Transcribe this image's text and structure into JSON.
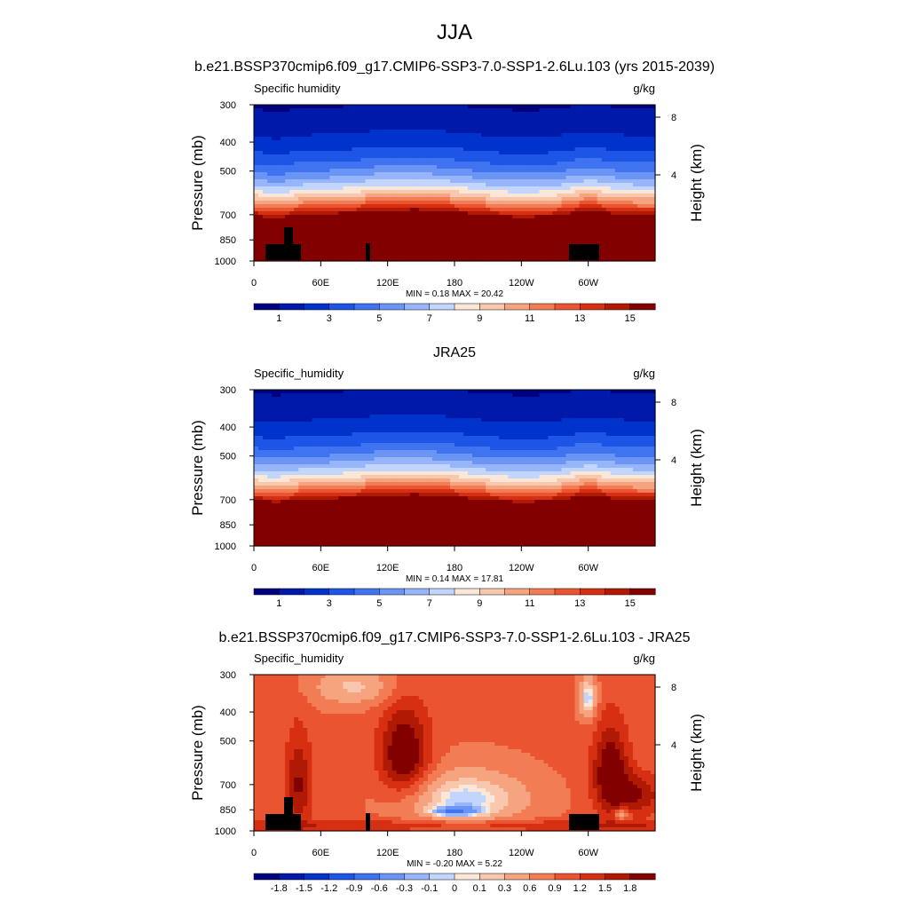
{
  "figure": {
    "title": "JJA"
  },
  "chart_data": [
    {
      "type": "heatmap",
      "title": "b.e21.BSSP370cmip6.f09_g17.CMIP6-SSP3-7.0-SSP1-2.6Lu.103 (yrs 2015-2039)",
      "left_label": "Specific humidity",
      "units": "g/kg",
      "ylabel": "Pressure (mb)",
      "y2label": "Height (km)",
      "xticks": [
        "0",
        "60E",
        "120E",
        "180",
        "120W",
        "60W"
      ],
      "yticks": [
        "300",
        "400",
        "500",
        "700",
        "850",
        "1000"
      ],
      "y2ticks": [
        "8",
        "4"
      ],
      "stats": "MIN =   0.18  MAX =  20.42",
      "min": 0.18,
      "max": 20.42,
      "colorbar_levels": [
        "1",
        "3",
        "5",
        "7",
        "9",
        "11",
        "13",
        "15"
      ],
      "terrain": true
    },
    {
      "type": "heatmap",
      "title": "JRA25",
      "left_label": "Specific_humidity",
      "units": "g/kg",
      "ylabel": "Pressure (mb)",
      "y2label": "Height (km)",
      "xticks": [
        "0",
        "60E",
        "120E",
        "180",
        "120W",
        "60W"
      ],
      "yticks": [
        "300",
        "400",
        "500",
        "700",
        "850",
        "1000"
      ],
      "y2ticks": [
        "8",
        "4"
      ],
      "stats": "MIN =   0.14  MAX =  17.81",
      "min": 0.14,
      "max": 17.81,
      "colorbar_levels": [
        "1",
        "3",
        "5",
        "7",
        "9",
        "11",
        "13",
        "15"
      ],
      "terrain": false
    },
    {
      "type": "heatmap",
      "title": "b.e21.BSSP370cmip6.f09_g17.CMIP6-SSP3-7.0-SSP1-2.6Lu.103 - JRA25",
      "left_label": "Specific_humidity",
      "units": "g/kg",
      "ylabel": "Pressure (mb)",
      "y2label": "Height (km)",
      "xticks": [
        "0",
        "60E",
        "120E",
        "180",
        "120W",
        "60W"
      ],
      "yticks": [
        "300",
        "400",
        "500",
        "700",
        "850",
        "1000"
      ],
      "y2ticks": [
        "8",
        "4"
      ],
      "stats": "MIN =  -0.20  MAX =   5.22",
      "min": -0.2,
      "max": 5.22,
      "colorbar_levels": [
        "-1.8",
        "-1.5",
        "-1.2",
        "-0.9",
        "-0.6",
        "-0.3",
        "-0.1",
        "0",
        "0.1",
        "0.3",
        "0.6",
        "0.9",
        "1.2",
        "1.5",
        "1.8"
      ],
      "terrain": true
    }
  ],
  "palette": [
    "#00007f",
    "#0019a8",
    "#0033cc",
    "#1d55e6",
    "#3f73f0",
    "#6b95f5",
    "#97b5fa",
    "#c2d5fd",
    "#fbe7d8",
    "#f9c7ad",
    "#f6a47f",
    "#f27d55",
    "#ea5430",
    "#d62f12",
    "#b01a05",
    "#830000"
  ]
}
